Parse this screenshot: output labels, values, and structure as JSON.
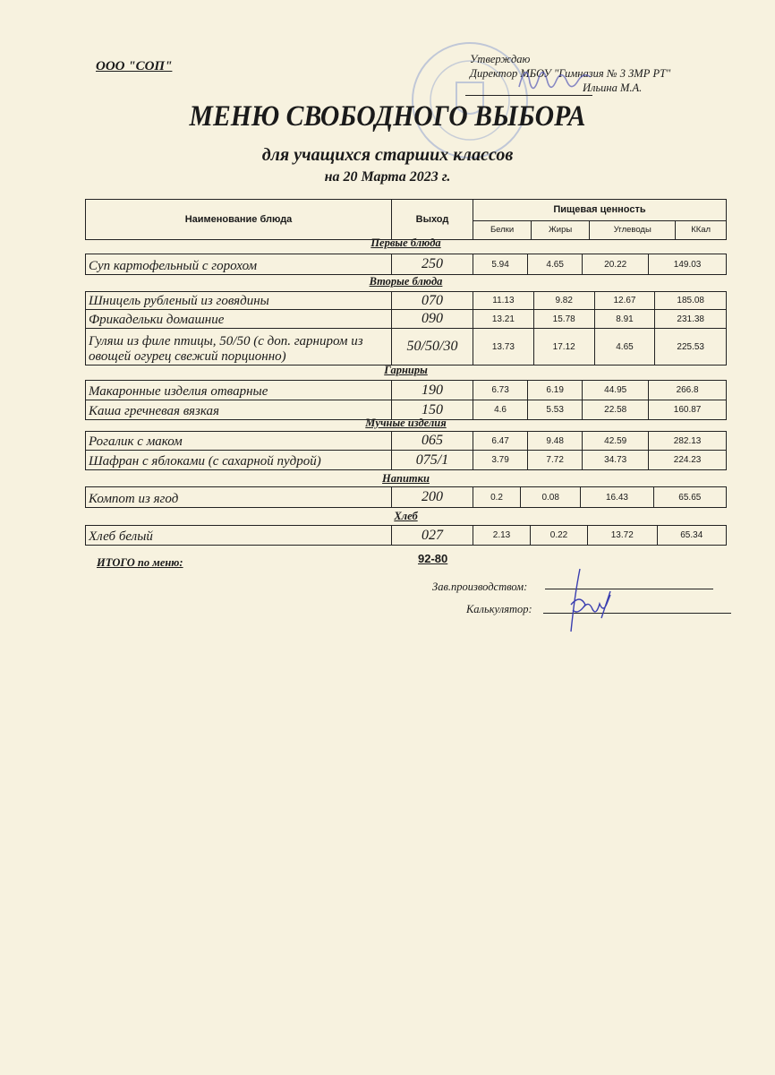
{
  "header": {
    "organization": "ООО \"СОП\"",
    "approve_label": "Утверждаю",
    "approver_position": "Директор МБОУ \"Гимназия № 3 ЗМР РТ\"",
    "approver_name": "Ильина М.А."
  },
  "title": "МЕНЮ СВОБОДНОГО ВЫБОРА",
  "subtitle": "для учащихся старших классов",
  "date": "на 20 Марта 2023 г.",
  "table": {
    "columns": {
      "name": "Наименование блюда",
      "output": "Выход",
      "nutrition": "Пищевая ценность",
      "protein": "Белки",
      "fat": "Жиры",
      "carbs": "Углеводы",
      "kcal": "ККал"
    },
    "sections": [
      {
        "title": "Первые блюда",
        "rows": [
          {
            "name": "Суп картофельный с горохом",
            "output": "250",
            "protein": "5.94",
            "fat": "4.65",
            "carbs": "20.22",
            "kcal": "149.03"
          }
        ]
      },
      {
        "title": "Вторые блюда",
        "rows": [
          {
            "name": "Шницель  рубленый из говядины",
            "output": "070",
            "protein": "11.13",
            "fat": "9.82",
            "carbs": "12.67",
            "kcal": "185.08"
          },
          {
            "name": "Фрикадельки домашние",
            "output": "090",
            "protein": "13.21",
            "fat": "15.78",
            "carbs": "8.91",
            "kcal": "231.38"
          },
          {
            "name": "Гуляш из филе птицы, 50/50 (с доп. гарниром из овощей огурец свежий порционно)",
            "output": "50/50/30",
            "protein": "13.73",
            "fat": "17.12",
            "carbs": "4.65",
            "kcal": "225.53"
          }
        ]
      },
      {
        "title": "Гарниры",
        "rows": [
          {
            "name": "Макаронные изделия отварные",
            "output": "190",
            "protein": "6.73",
            "fat": "6.19",
            "carbs": "44.95",
            "kcal": "266.8"
          },
          {
            "name": "Каша гречневая вязкая",
            "output": "150",
            "protein": "4.6",
            "fat": "5.53",
            "carbs": "22.58",
            "kcal": "160.87"
          }
        ]
      },
      {
        "title": "Мучные изделия",
        "rows": [
          {
            "name": "Рогалик с маком",
            "output": "065",
            "protein": "6.47",
            "fat": "9.48",
            "carbs": "42.59",
            "kcal": "282.13"
          },
          {
            "name": "Шафран с яблоками (с сахарной пудрой)",
            "output": "075/1",
            "protein": "3.79",
            "fat": "7.72",
            "carbs": "34.73",
            "kcal": "224.23"
          }
        ]
      },
      {
        "title": "Напитки",
        "rows": [
          {
            "name": "Компот из  ягод",
            "output": "200",
            "protein": "0.2",
            "fat": "0.08",
            "carbs": "16.43",
            "kcal": "65.65"
          }
        ]
      },
      {
        "title": "Хлеб",
        "rows": [
          {
            "name": "Хлеб белый",
            "output": "027",
            "protein": "2.13",
            "fat": "0.22",
            "carbs": "13.72",
            "kcal": "65.34"
          }
        ]
      }
    ]
  },
  "total": {
    "label": "ИТОГО по меню:",
    "value": "92-80"
  },
  "signatures": {
    "production_head": "Зав.производством:",
    "calculator": "Калькулятор:"
  },
  "colors": {
    "paper": "#f7f2df",
    "stamp": "#5a78c8",
    "ink_signature": "#3b3fb0"
  }
}
